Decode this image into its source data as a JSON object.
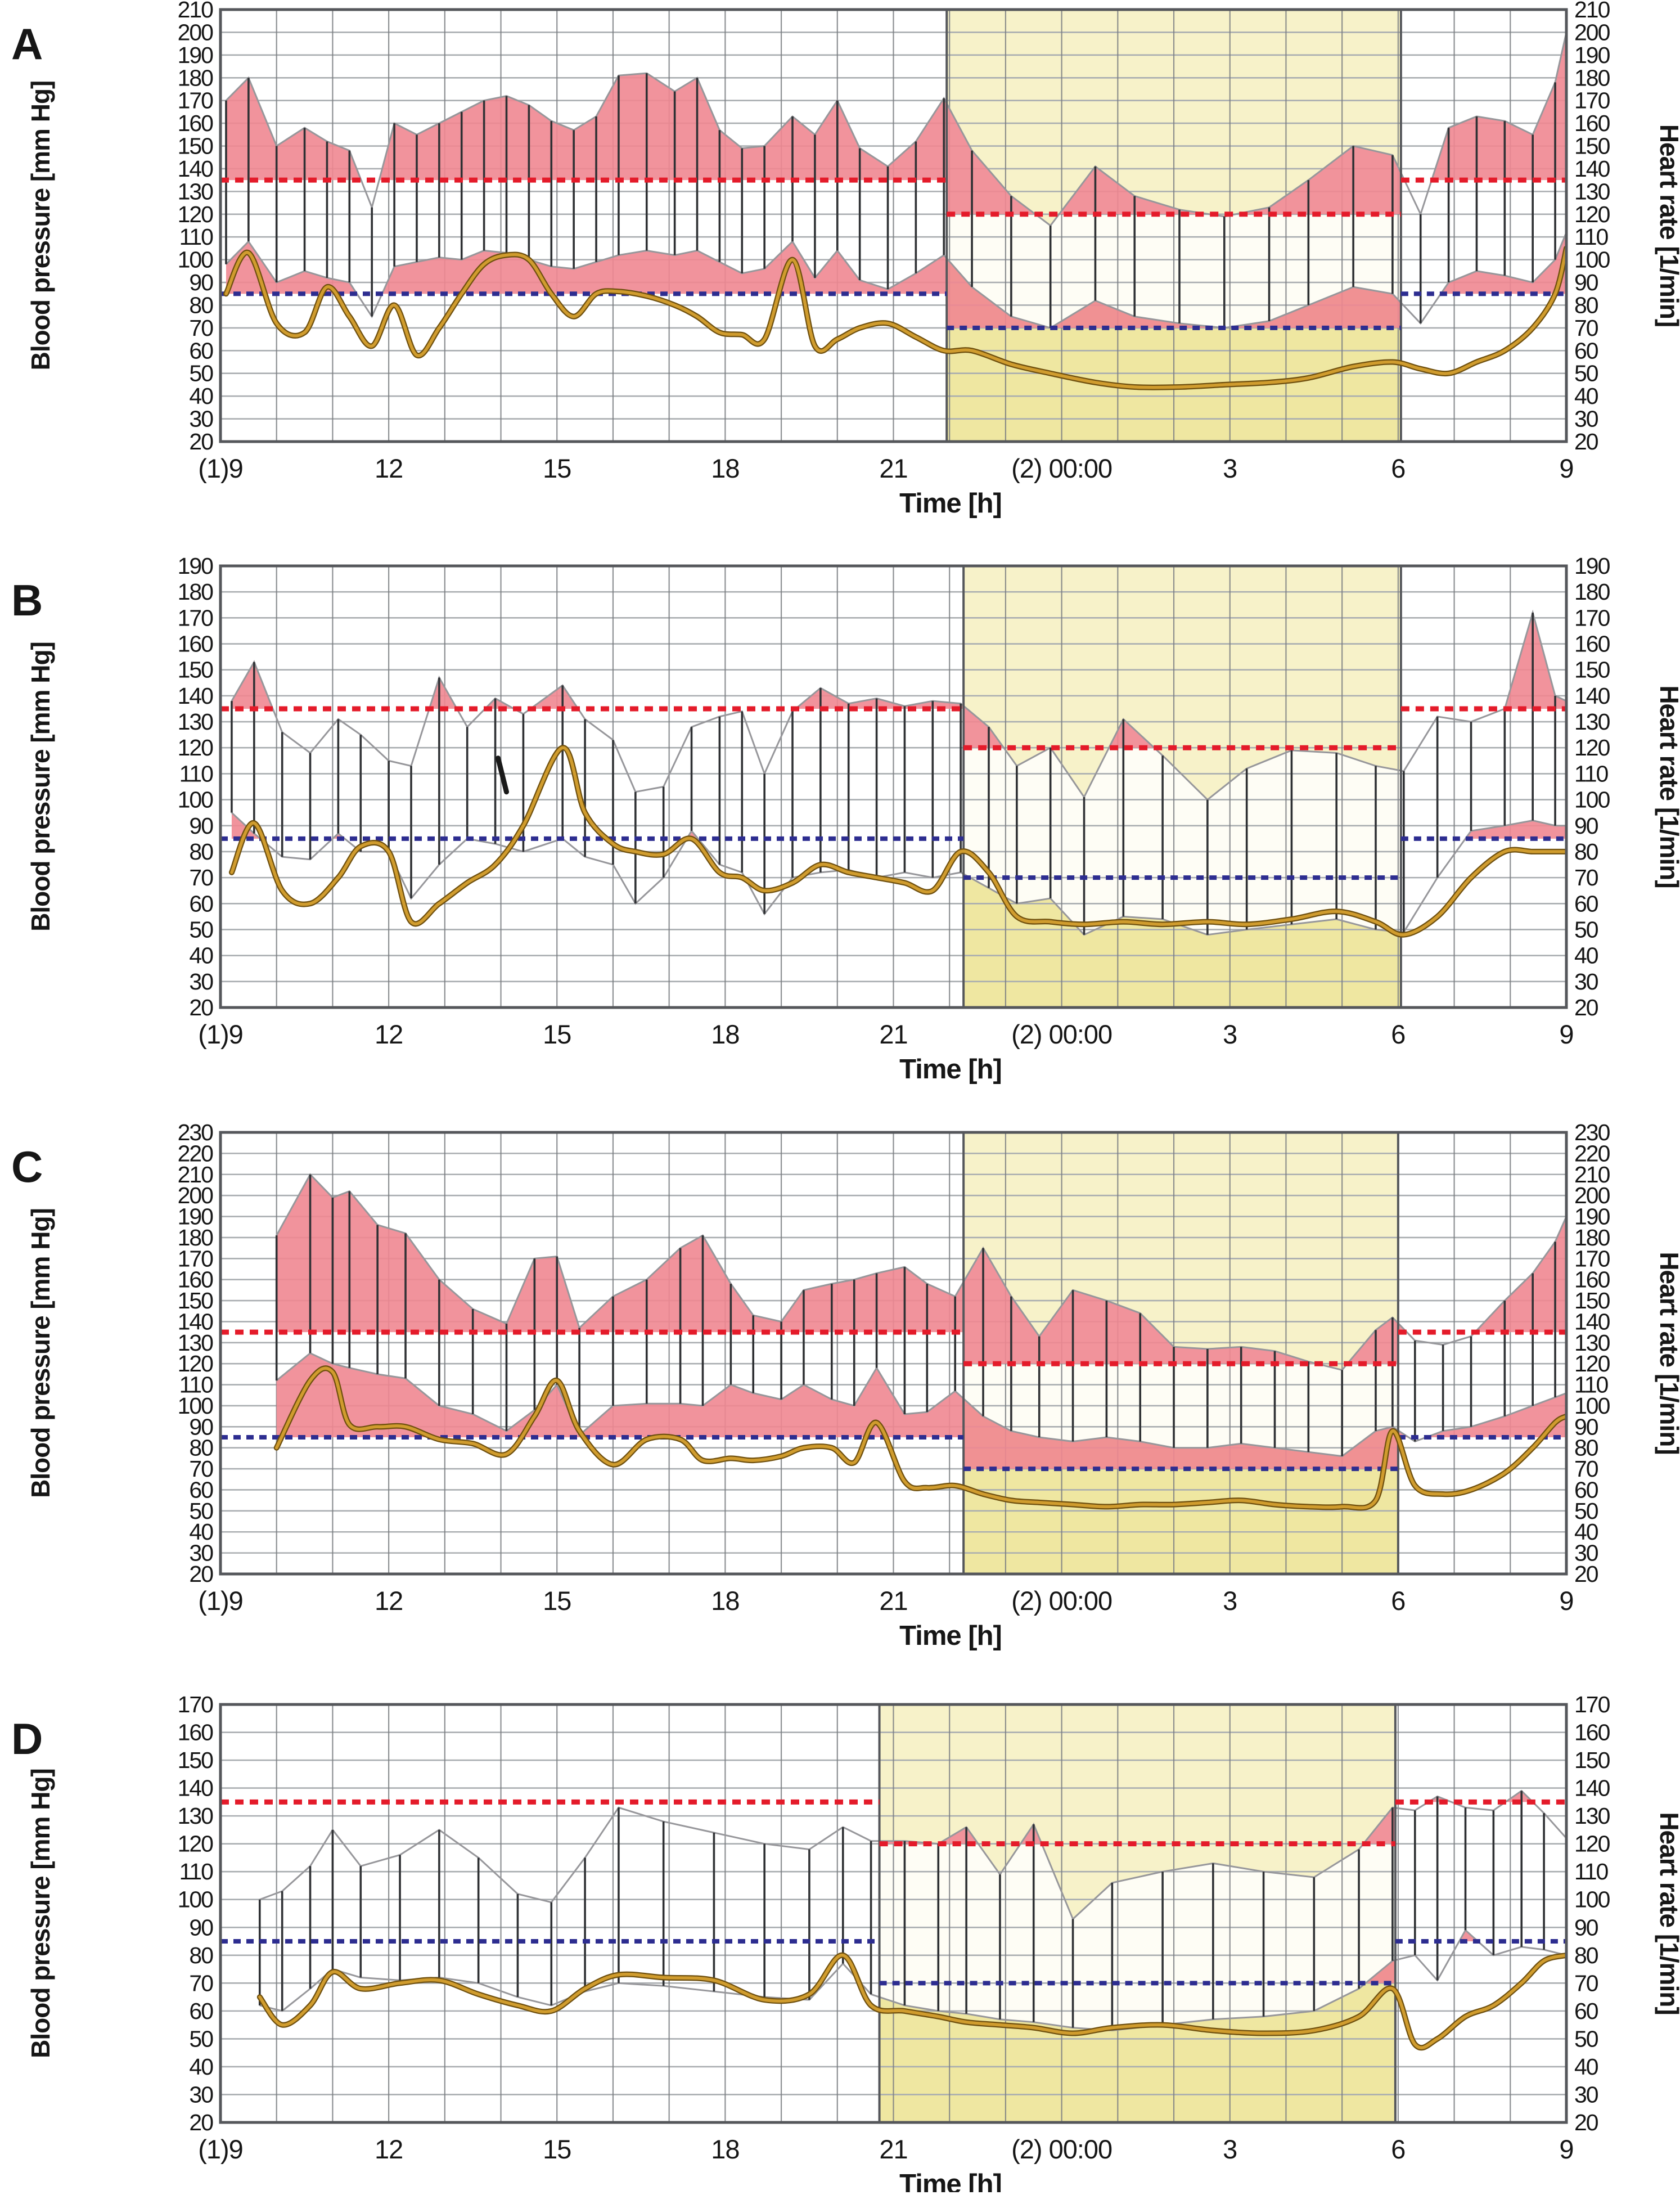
{
  "figure": {
    "xlabel": "Time [h]",
    "ylabel_left": "Blood pressure [mm Hg]",
    "ylabel_right": "Heart rate [1/min]",
    "x_range": [
      9,
      33
    ],
    "x_ticks": [
      {
        "t": 9,
        "label": "(1)9"
      },
      {
        "t": 12,
        "label": "12"
      },
      {
        "t": 15,
        "label": "15"
      },
      {
        "t": 18,
        "label": "18"
      },
      {
        "t": 21,
        "label": "21"
      },
      {
        "t": 24,
        "label": "(2) 00:00"
      },
      {
        "t": 27,
        "label": "3"
      },
      {
        "t": 30,
        "label": "6"
      },
      {
        "t": 33,
        "label": "9"
      }
    ],
    "colors": {
      "pink_fill": "#ef8791",
      "night_fill": "#f7f2c9",
      "night_fill_deep": "#e9de7f",
      "systolic_limit_line": "#e41b2a",
      "diastolic_limit_line": "#2d2d90",
      "heart_rate_line": "#d09c2e",
      "heart_rate_edge": "#6f500f",
      "bp_connector": "#97979b",
      "measurement_line": "#2f3134",
      "grid_h": "#a9adb0",
      "grid_v": "#7b7e82",
      "border": "#55575b",
      "envelope_fill": "#ffffff",
      "text": "#161616"
    }
  },
  "chart_data": [
    {
      "type": "line",
      "panel": "A",
      "title_letter": "A",
      "ylim": [
        20,
        210
      ],
      "ytick_step": 10,
      "thresholds": {
        "systolic_day": 135,
        "systolic_night": 120,
        "diastolic_day": 85,
        "diastolic_night": 70
      },
      "night_period": [
        21.95,
        30.05
      ],
      "series": {
        "time_h": [
          9.1,
          9.5,
          10.0,
          10.5,
          10.9,
          11.3,
          11.7,
          12.1,
          12.5,
          12.9,
          13.3,
          13.7,
          14.1,
          14.5,
          14.9,
          15.3,
          15.7,
          16.1,
          16.6,
          17.1,
          17.5,
          17.9,
          18.3,
          18.7,
          19.2,
          19.6,
          20.0,
          20.4,
          20.9,
          21.4,
          21.9,
          22.4,
          23.1,
          23.8,
          24.6,
          25.3,
          26.1,
          26.9,
          27.7,
          28.4,
          29.2,
          29.9,
          30.4,
          30.9,
          31.4,
          31.9,
          32.4,
          32.8,
          33.0
        ],
        "systolic": [
          170,
          180,
          150,
          158,
          152,
          148,
          123,
          160,
          155,
          160,
          165,
          170,
          172,
          168,
          161,
          157,
          163,
          181,
          182,
          174,
          180,
          157,
          149,
          150,
          163,
          155,
          170,
          149,
          141,
          152,
          171,
          148,
          128,
          115,
          141,
          128,
          122,
          119,
          123,
          135,
          150,
          146,
          120,
          158,
          163,
          161,
          155,
          178,
          200
        ],
        "diastolic": [
          98,
          108,
          90,
          95,
          92,
          90,
          75,
          97,
          99,
          101,
          100,
          104,
          103,
          100,
          97,
          96,
          99,
          102,
          104,
          102,
          104,
          99,
          94,
          96,
          108,
          92,
          104,
          91,
          87,
          94,
          102,
          88,
          75,
          70,
          82,
          75,
          72,
          70,
          73,
          80,
          88,
          85,
          72,
          90,
          95,
          93,
          90,
          100,
          112
        ],
        "heart_rate": [
          85,
          103,
          72,
          68,
          88,
          75,
          62,
          80,
          58,
          70,
          85,
          98,
          102,
          100,
          85,
          75,
          85,
          86,
          84,
          80,
          75,
          68,
          67,
          65,
          100,
          62,
          65,
          70,
          72,
          66,
          60,
          60,
          54,
          50,
          46,
          44,
          44,
          45,
          46,
          48,
          53,
          55,
          52,
          50,
          55,
          60,
          70,
          85,
          105
        ]
      }
    },
    {
      "type": "line",
      "panel": "B",
      "title_letter": "B",
      "ylim": [
        20,
        190
      ],
      "ytick_step": 10,
      "thresholds": {
        "systolic_day": 135,
        "systolic_night": 120,
        "diastolic_day": 85,
        "diastolic_night": 70
      },
      "night_period": [
        22.25,
        30.05
      ],
      "annotation_mark": {
        "t1": 13.95,
        "v1": 116,
        "t2": 14.1,
        "v2": 103
      },
      "series": {
        "time_h": [
          9.2,
          9.6,
          10.1,
          10.6,
          11.1,
          11.5,
          12.0,
          12.4,
          12.9,
          13.4,
          13.9,
          14.4,
          15.1,
          15.5,
          16.0,
          16.4,
          16.9,
          17.4,
          17.9,
          18.3,
          18.7,
          19.2,
          19.7,
          20.2,
          20.7,
          21.2,
          21.7,
          22.2,
          22.7,
          23.2,
          23.8,
          24.4,
          25.1,
          25.8,
          26.6,
          27.3,
          28.1,
          28.9,
          29.6,
          30.1,
          30.7,
          31.3,
          31.9,
          32.4,
          32.8,
          33.0
        ],
        "systolic": [
          138,
          153,
          126,
          118,
          131,
          125,
          115,
          113,
          147,
          128,
          139,
          133,
          144,
          131,
          123,
          103,
          105,
          128,
          132,
          134,
          110,
          134,
          143,
          137,
          139,
          136,
          138,
          137,
          128,
          113,
          120,
          101,
          131,
          117,
          100,
          112,
          119,
          118,
          113,
          111,
          132,
          130,
          135,
          172,
          140,
          138
        ],
        "diastolic": [
          95,
          87,
          78,
          77,
          87,
          80,
          80,
          62,
          75,
          85,
          83,
          80,
          85,
          78,
          75,
          60,
          70,
          88,
          75,
          72,
          56,
          70,
          72,
          73,
          70,
          72,
          70,
          72,
          66,
          60,
          62,
          48,
          55,
          54,
          48,
          50,
          52,
          54,
          50,
          49,
          70,
          88,
          90,
          92,
          90,
          90
        ],
        "heart_rate": [
          72,
          91,
          65,
          60,
          70,
          82,
          80,
          53,
          60,
          68,
          75,
          90,
          120,
          95,
          83,
          80,
          79,
          85,
          72,
          70,
          65,
          68,
          75,
          72,
          70,
          68,
          65,
          80,
          72,
          55,
          53,
          52,
          53,
          52,
          53,
          52,
          54,
          57,
          53,
          48,
          55,
          70,
          80,
          80,
          80,
          80
        ]
      }
    },
    {
      "type": "line",
      "panel": "C",
      "title_letter": "C",
      "ylim": [
        20,
        230
      ],
      "ytick_step": 10,
      "thresholds": {
        "systolic_day": 135,
        "systolic_night": 120,
        "diastolic_day": 85,
        "diastolic_night": 70
      },
      "night_period": [
        22.25,
        30.0
      ],
      "series": {
        "time_h": [
          10.0,
          10.6,
          11.0,
          11.3,
          11.8,
          12.3,
          12.9,
          13.5,
          14.1,
          14.6,
          15.0,
          15.4,
          16.0,
          16.6,
          17.2,
          17.6,
          18.1,
          18.5,
          19.0,
          19.4,
          19.9,
          20.3,
          20.7,
          21.2,
          21.6,
          22.1,
          22.6,
          23.1,
          23.6,
          24.2,
          24.8,
          25.4,
          26.0,
          26.6,
          27.2,
          27.8,
          28.4,
          29.0,
          29.6,
          29.9,
          30.3,
          30.8,
          31.3,
          31.9,
          32.4,
          32.8,
          33.0
        ],
        "systolic": [
          181,
          210,
          199,
          202,
          186,
          182,
          160,
          146,
          139,
          170,
          171,
          137,
          152,
          160,
          175,
          181,
          158,
          143,
          140,
          155,
          158,
          160,
          163,
          166,
          158,
          152,
          175,
          152,
          133,
          155,
          150,
          144,
          128,
          127,
          128,
          126,
          121,
          117,
          136,
          142,
          131,
          129,
          133,
          150,
          163,
          178,
          190
        ],
        "diastolic": [
          112,
          125,
          120,
          118,
          115,
          113,
          100,
          96,
          88,
          98,
          110,
          86,
          100,
          101,
          101,
          100,
          110,
          106,
          103,
          110,
          103,
          100,
          118,
          96,
          97,
          107,
          95,
          88,
          85,
          83,
          85,
          83,
          80,
          80,
          82,
          80,
          78,
          76,
          88,
          90,
          83,
          88,
          90,
          95,
          100,
          104,
          106
        ],
        "heart_rate": [
          80,
          112,
          116,
          91,
          90,
          90,
          84,
          82,
          77,
          95,
          112,
          88,
          72,
          84,
          84,
          74,
          75,
          74,
          76,
          80,
          80,
          73,
          92,
          64,
          61,
          62,
          58,
          55,
          54,
          53,
          52,
          53,
          53,
          54,
          55,
          53,
          52,
          52,
          55,
          88,
          62,
          58,
          60,
          68,
          80,
          92,
          95
        ]
      }
    },
    {
      "type": "line",
      "panel": "D",
      "title_letter": "D",
      "ylim": [
        20,
        170
      ],
      "ytick_step": 10,
      "thresholds": {
        "systolic_day": 135,
        "systolic_night": 120,
        "diastolic_day": 85,
        "diastolic_night": 70
      },
      "night_period": [
        20.75,
        29.95
      ],
      "series": {
        "time_h": [
          9.7,
          10.1,
          10.6,
          11.0,
          11.5,
          12.2,
          12.9,
          13.6,
          14.3,
          14.9,
          15.5,
          16.1,
          16.9,
          17.8,
          18.7,
          19.5,
          20.1,
          20.6,
          21.2,
          21.8,
          22.3,
          22.9,
          23.5,
          24.2,
          24.9,
          25.8,
          26.7,
          27.6,
          28.5,
          29.3,
          29.9,
          30.3,
          30.7,
          31.2,
          31.7,
          32.2,
          32.6,
          33.0
        ],
        "systolic": [
          100,
          103,
          112,
          125,
          112,
          116,
          125,
          115,
          102,
          99,
          115,
          133,
          128,
          124,
          120,
          118,
          126,
          121,
          121,
          120,
          126,
          109,
          127,
          93,
          106,
          110,
          113,
          110,
          108,
          118,
          133,
          132,
          137,
          133,
          132,
          139,
          131,
          122
        ],
        "diastolic": [
          62,
          60,
          68,
          75,
          72,
          71,
          72,
          70,
          65,
          62,
          67,
          70,
          69,
          67,
          65,
          64,
          77,
          66,
          62,
          60,
          59,
          57,
          56,
          54,
          53,
          55,
          57,
          58,
          60,
          68,
          78,
          80,
          71,
          89,
          80,
          83,
          82,
          80
        ],
        "heart_rate": [
          65,
          55,
          62,
          74,
          68,
          70,
          71,
          66,
          62,
          60,
          68,
          73,
          72,
          71,
          64,
          66,
          80,
          62,
          60,
          58,
          56,
          55,
          54,
          52,
          54,
          55,
          53,
          52,
          53,
          58,
          68,
          48,
          50,
          58,
          62,
          70,
          78,
          80
        ]
      }
    }
  ]
}
